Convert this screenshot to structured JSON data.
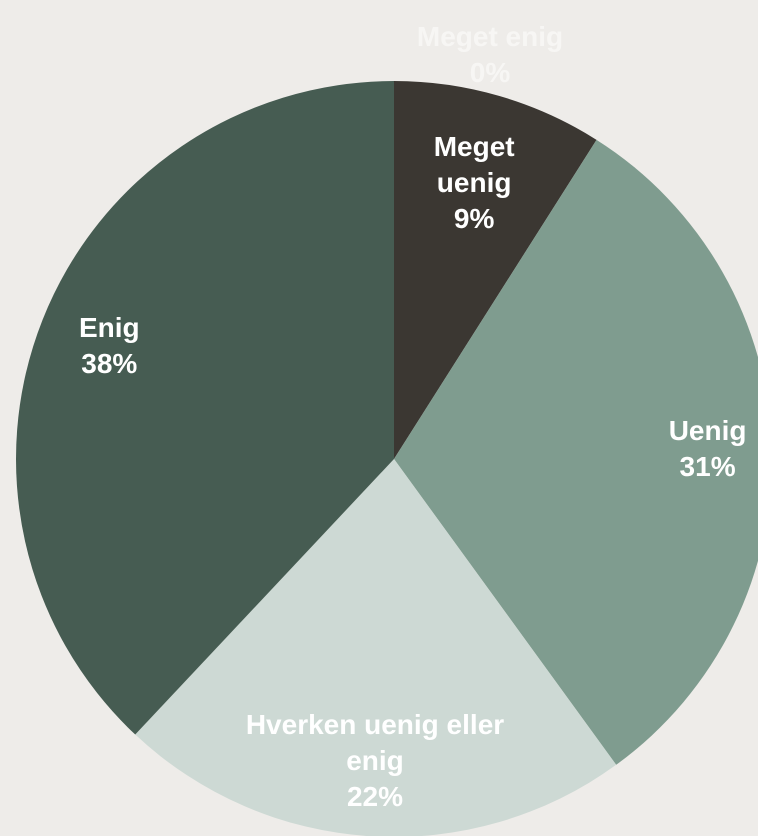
{
  "chart_data": {
    "type": "pie",
    "categories": [
      "Meget uenig",
      "Uenig",
      "Hverken uenig eller enig",
      "Enig",
      "Meget enig"
    ],
    "values": [
      9,
      31,
      22,
      38,
      0
    ],
    "value_labels": [
      "9%",
      "31%",
      "22%",
      "38%",
      "0%"
    ],
    "colors": [
      "#3b3732",
      "#7f9c8f",
      "#cdd9d4",
      "#465c52",
      "#ffffff"
    ]
  }
}
